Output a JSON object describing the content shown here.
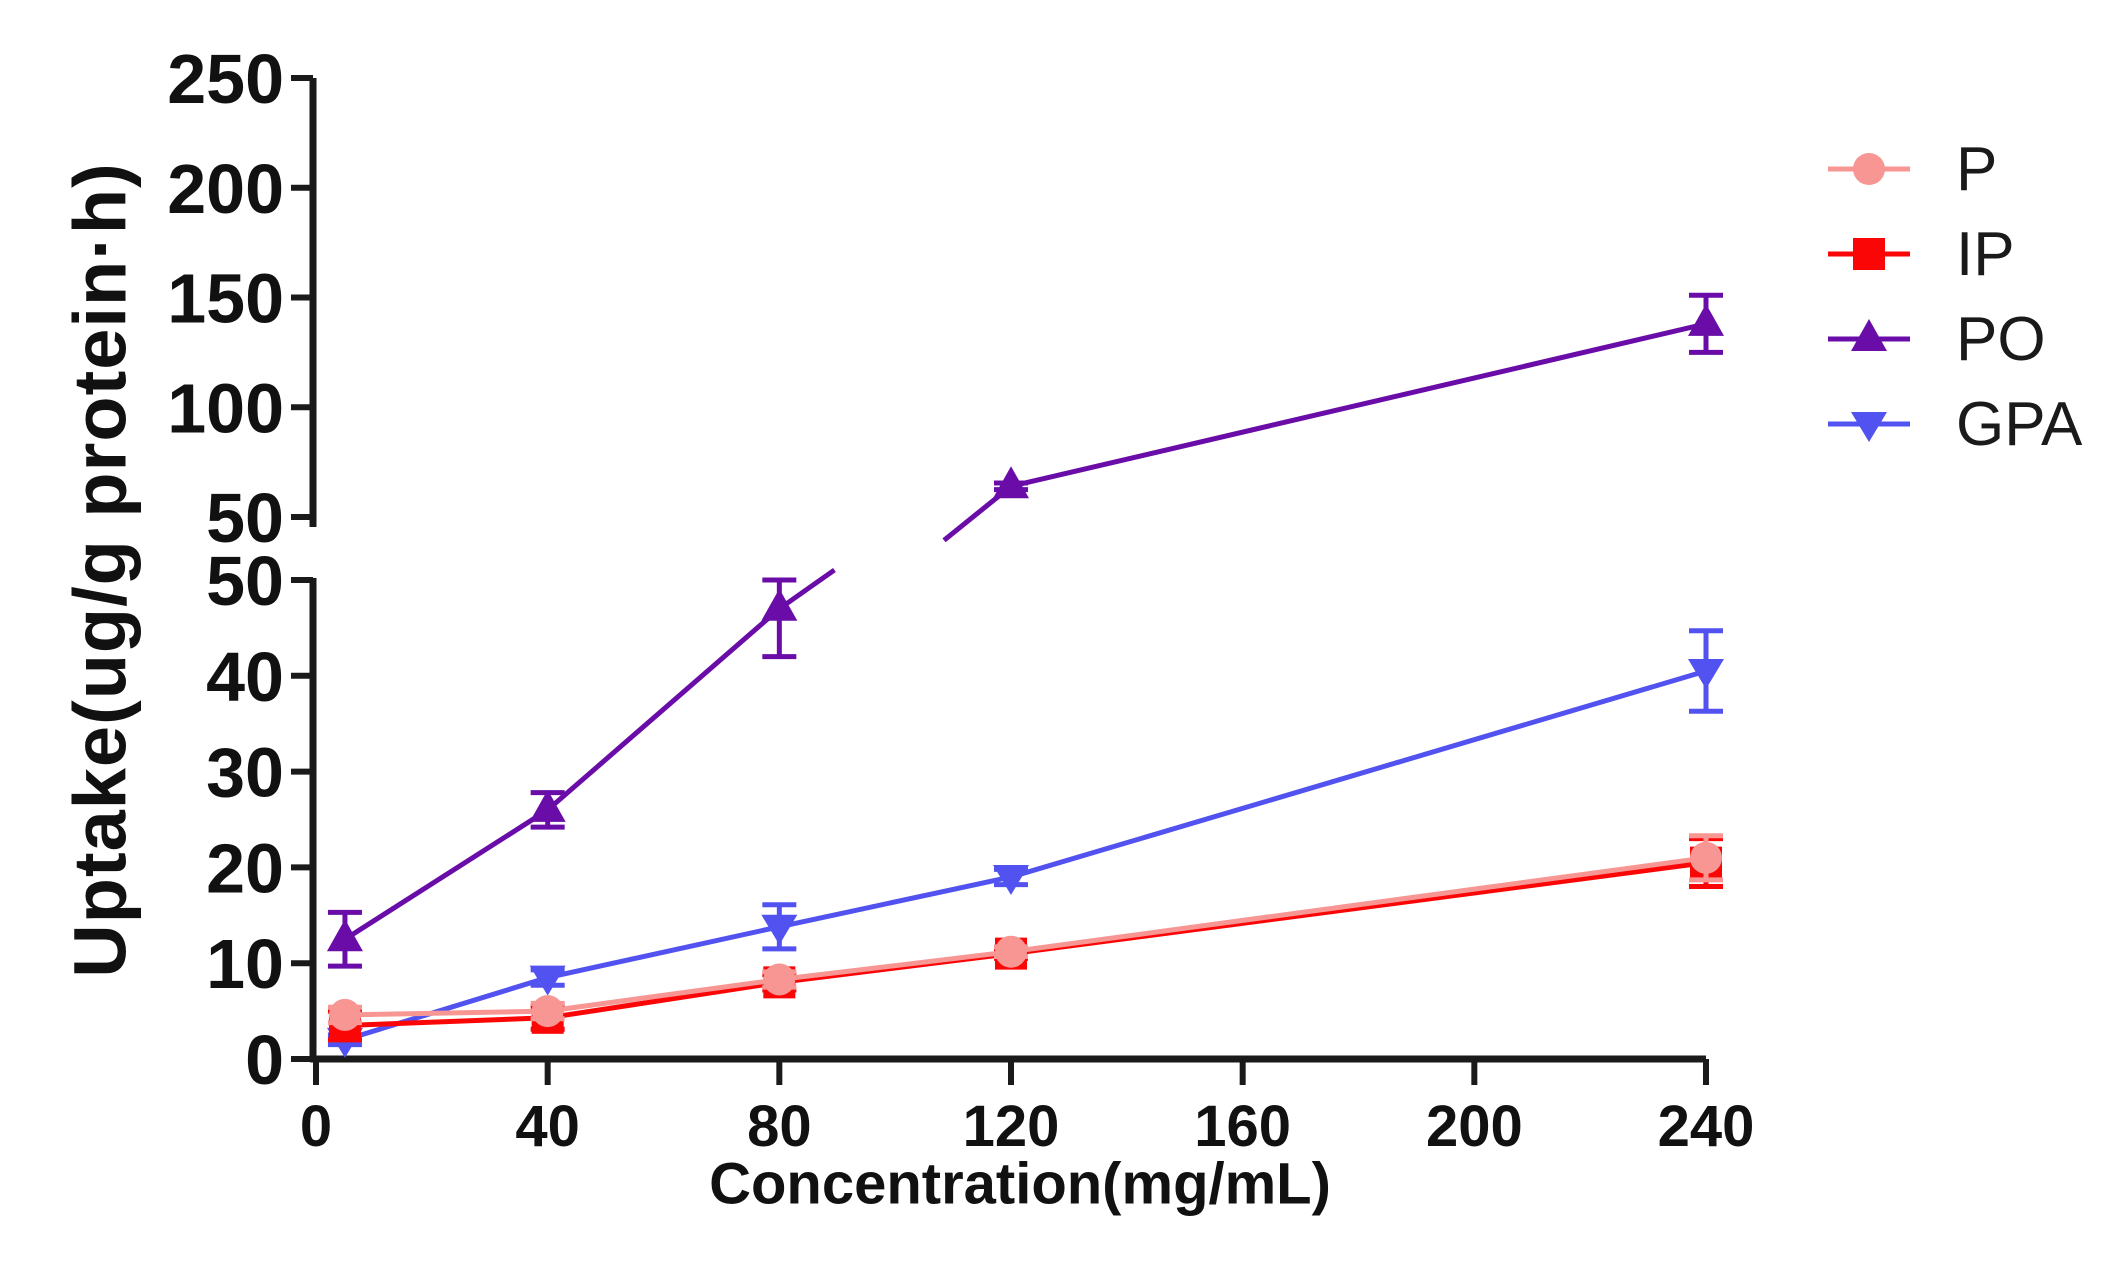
{
  "figure": {
    "background": "#ffffff",
    "axis_color": "#1a1a1a"
  },
  "chart_data": {
    "type": "line",
    "title": "",
    "xlabel": "Concentration(mg/mL)",
    "ylabel": "Uptake(ug/g protein·h)",
    "grid": false,
    "x_axis": {
      "range": [
        0,
        240
      ],
      "ticks": [
        0,
        40,
        80,
        120,
        160,
        200,
        240
      ]
    },
    "y_axis": {
      "broken": true,
      "lower": {
        "range": [
          0,
          50
        ],
        "ticks": [
          0,
          10,
          20,
          30,
          40,
          50
        ]
      },
      "upper": {
        "range": [
          50,
          250
        ],
        "ticks": [
          50,
          100,
          150,
          200,
          250
        ]
      }
    },
    "x": [
      5,
      40,
      80,
      120,
      240
    ],
    "series": [
      {
        "name": "P",
        "marker": "circle",
        "color": "#F79693",
        "values": [
          4.6,
          5,
          8.3,
          11.2,
          21
        ],
        "errors": [
          0.8,
          0.8,
          0.8,
          0.5,
          2.3
        ]
      },
      {
        "name": "IP",
        "marker": "square",
        "color": "#FA0606",
        "values": [
          3.5,
          4.3,
          8,
          11,
          20.5
        ],
        "errors": [
          1.5,
          1.2,
          0.8,
          0.5,
          2.5
        ]
      },
      {
        "name": "PO",
        "marker": "triangle-up",
        "color": "#6A0DA8",
        "values": [
          12.5,
          26,
          47,
          64,
          138
        ],
        "errors": [
          2.8,
          1.8,
          5,
          1.5,
          13
        ]
      },
      {
        "name": "GPA",
        "marker": "triangle-down",
        "color": "#5252F0",
        "values": [
          2,
          8.5,
          13.8,
          19,
          40.5
        ],
        "errors": [
          0.5,
          0.8,
          2.3,
          0.8,
          4.2
        ]
      }
    ],
    "legend": {
      "position": "right",
      "items": [
        {
          "label": "P"
        },
        {
          "label": "IP"
        },
        {
          "label": "PO"
        },
        {
          "label": "GPA"
        }
      ]
    }
  }
}
